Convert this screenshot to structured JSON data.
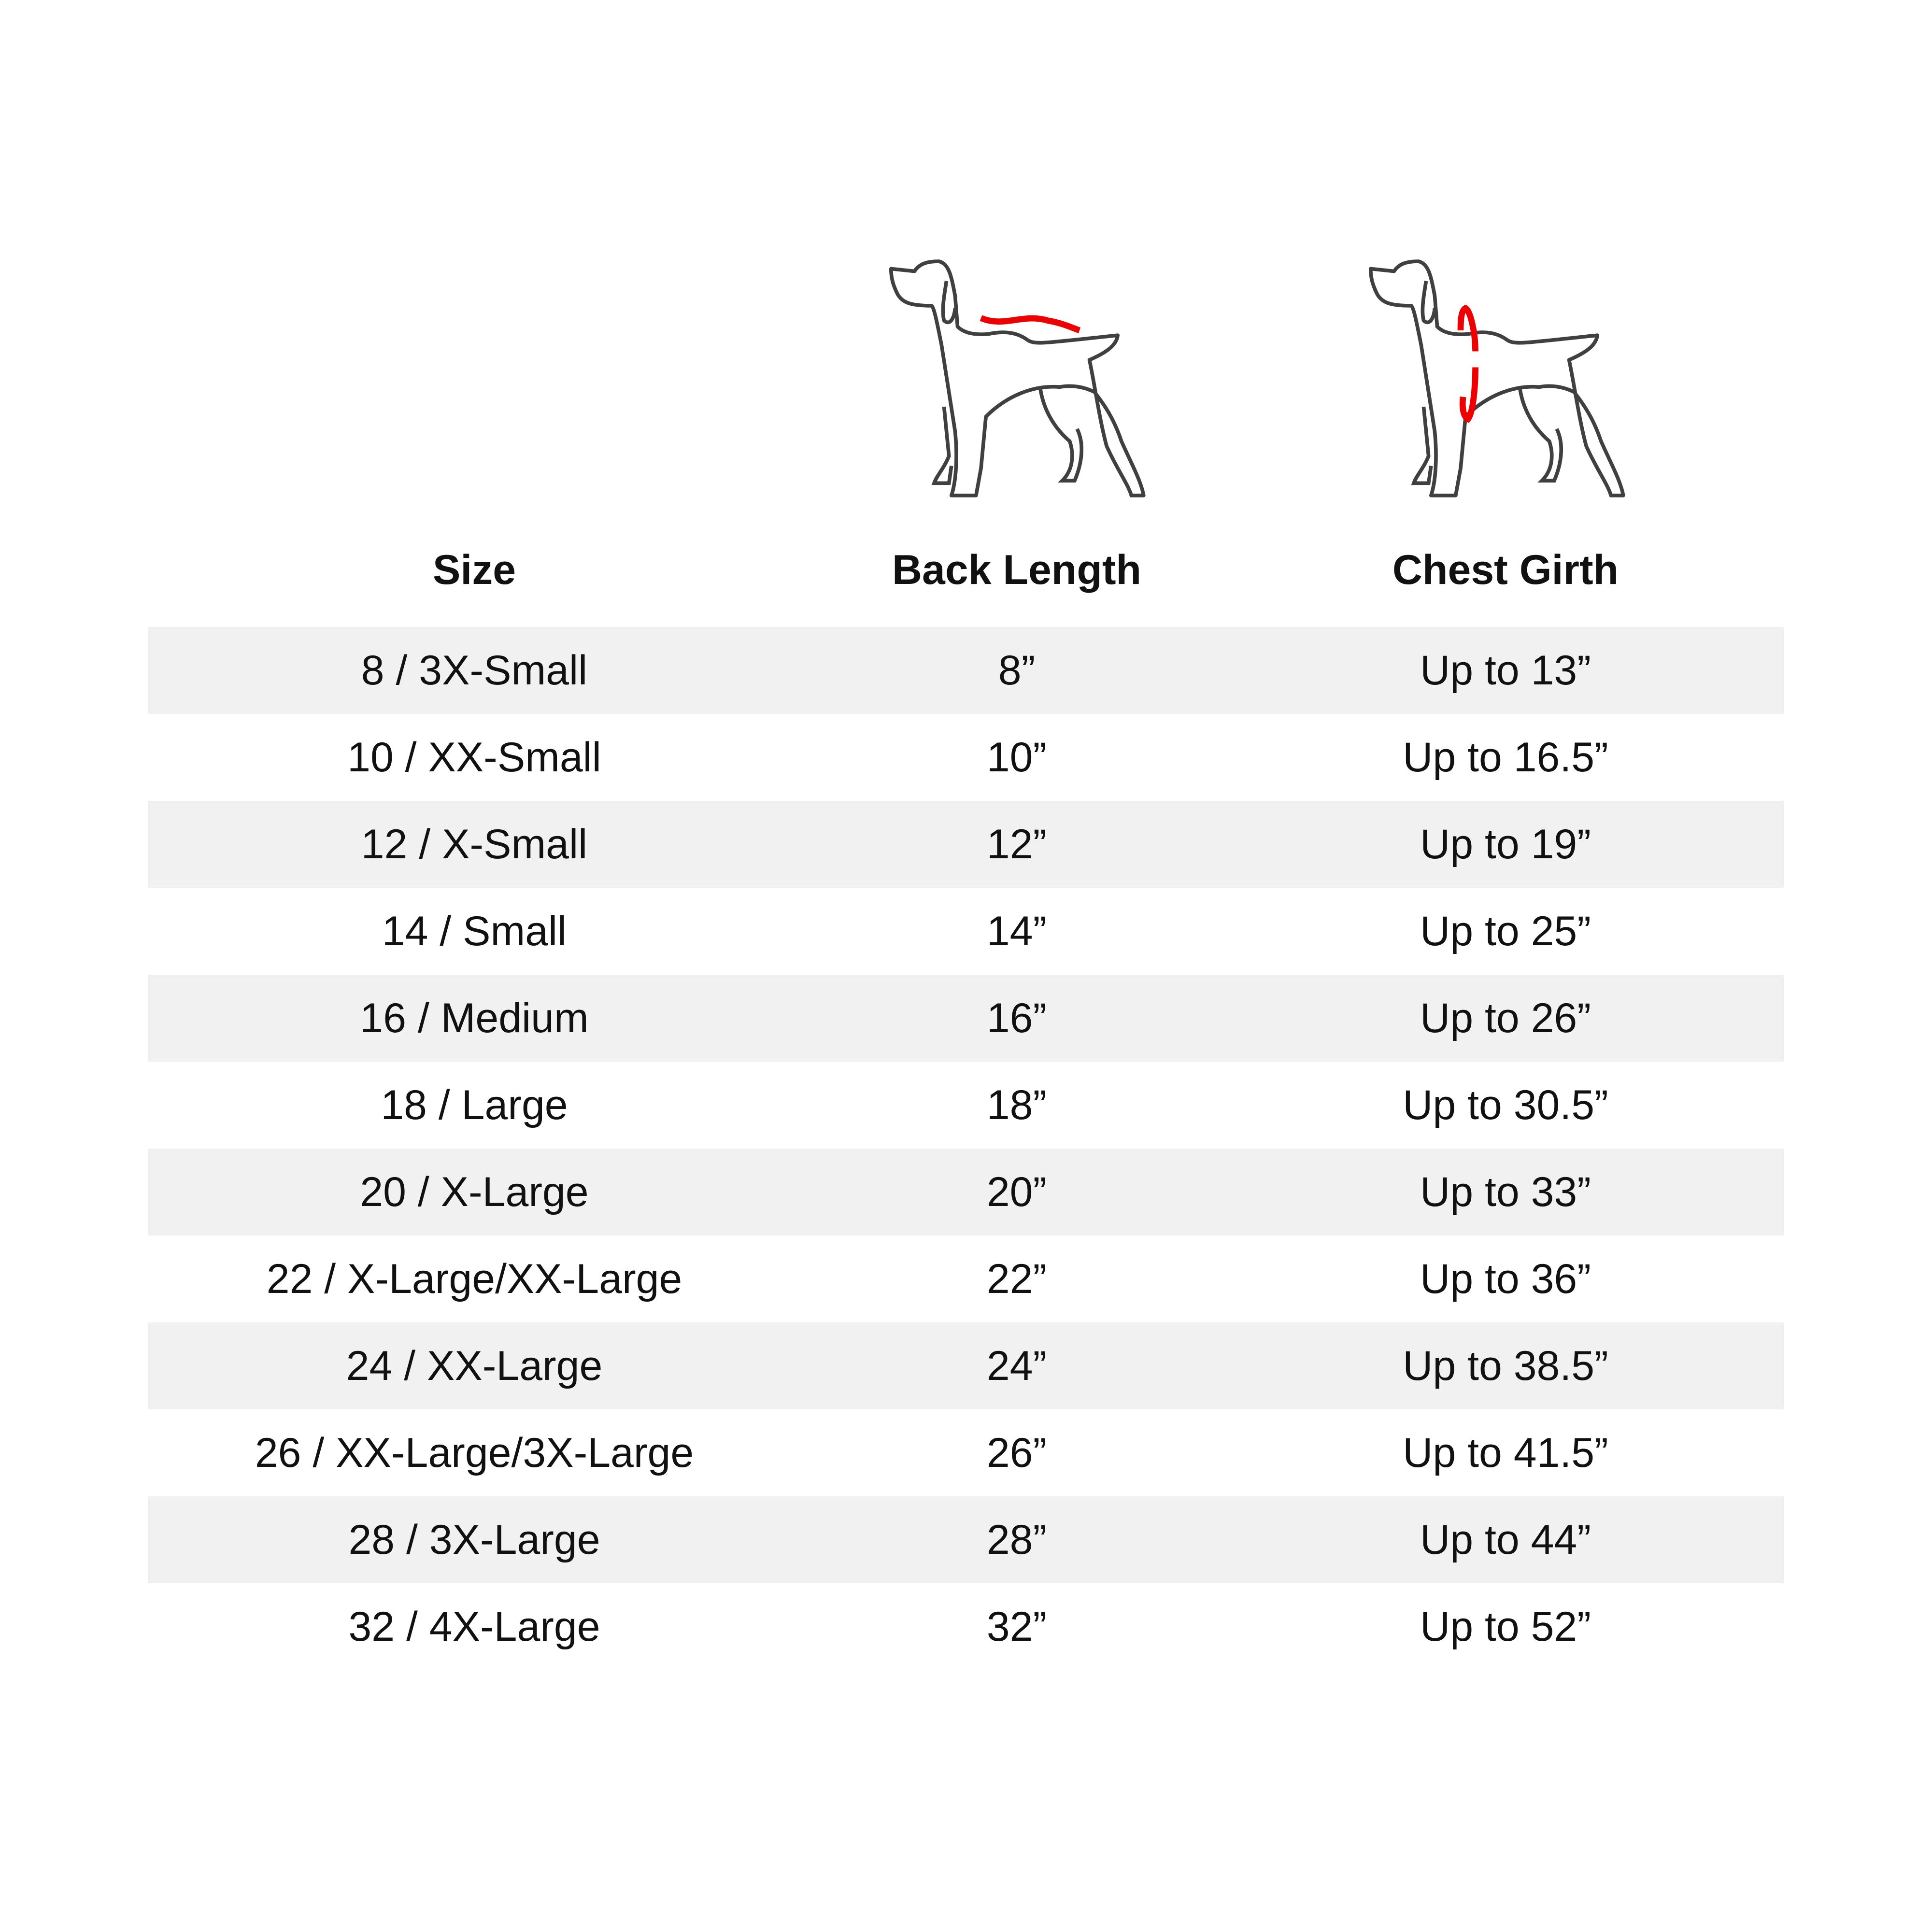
{
  "headers": {
    "size": "Size",
    "back_length": "Back Length",
    "chest_girth": "Chest Girth"
  },
  "icons": {
    "back_length": "dog-back-length-icon",
    "chest_girth": "dog-chest-girth-icon",
    "accent_color": "#ee0000",
    "outline_color": "#404040"
  },
  "rows": [
    {
      "size": "8 / 3X-Small",
      "back": "8”",
      "chest": "Up to 13”"
    },
    {
      "size": "10 / XX-Small",
      "back": "10”",
      "chest": "Up to 16.5”"
    },
    {
      "size": "12 / X-Small",
      "back": "12”",
      "chest": "Up to 19”"
    },
    {
      "size": "14 / Small",
      "back": "14”",
      "chest": "Up to 25”"
    },
    {
      "size": "16 / Medium",
      "back": "16”",
      "chest": "Up to 26”"
    },
    {
      "size": "18 / Large",
      "back": "18”",
      "chest": "Up to 30.5”"
    },
    {
      "size": "20 / X-Large",
      "back": "20”",
      "chest": "Up to 33”"
    },
    {
      "size": "22 / X-Large/XX-Large",
      "back": "22”",
      "chest": "Up to 36”"
    },
    {
      "size": "24 / XX-Large",
      "back": "24”",
      "chest": "Up to 38.5”"
    },
    {
      "size": "26 / XX-Large/3X-Large",
      "back": "26”",
      "chest": "Up to 41.5”"
    },
    {
      "size": "28 / 3X-Large",
      "back": "28”",
      "chest": "Up to 44”"
    },
    {
      "size": "32 / 4X-Large",
      "back": "32”",
      "chest": "Up to 52”"
    }
  ]
}
